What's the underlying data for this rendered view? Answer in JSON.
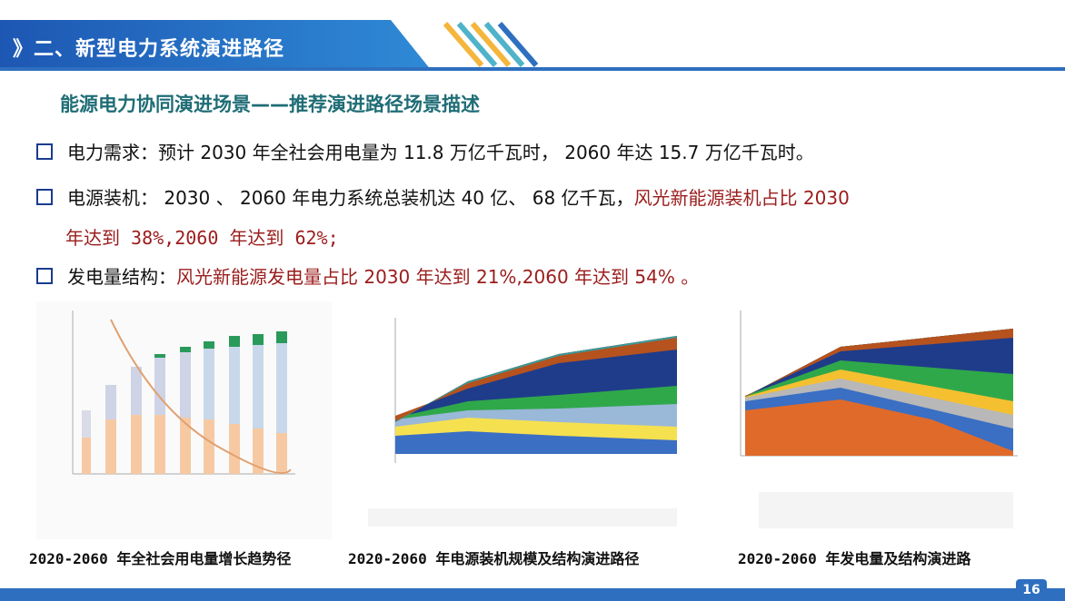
{
  "header": {
    "title": "》二、新型电力系统演进路径",
    "subtitle": "能源电力协同演进场景——推荐演进路径场景描述"
  },
  "bullets": [
    [
      "电力需求：预计 2030 年全社会用电量为 11.8 万亿千瓦时， 2060 年达 15.7 万亿千瓦时。"
    ],
    [
      "电源装机： 2030 、 2060 年电力系统总装机达 40 亿、 68 亿千瓦，",
      "风光新能源装机占比 2030",
      "年达到  38%,2060 年达到 62%;"
    ],
    [
      "发电量结构：",
      "风光新能源发电量占比 2030 年达到 21%,2060 年达到 54% 。"
    ]
  ],
  "captions": [
    "2020-2060 年全社会用电量增长趋势径",
    "2020-2060 年电源装机规模及结构演进路径",
    "2020-2060 年发电量及结构演进路"
  ],
  "footer": {
    "page": "16"
  }
}
